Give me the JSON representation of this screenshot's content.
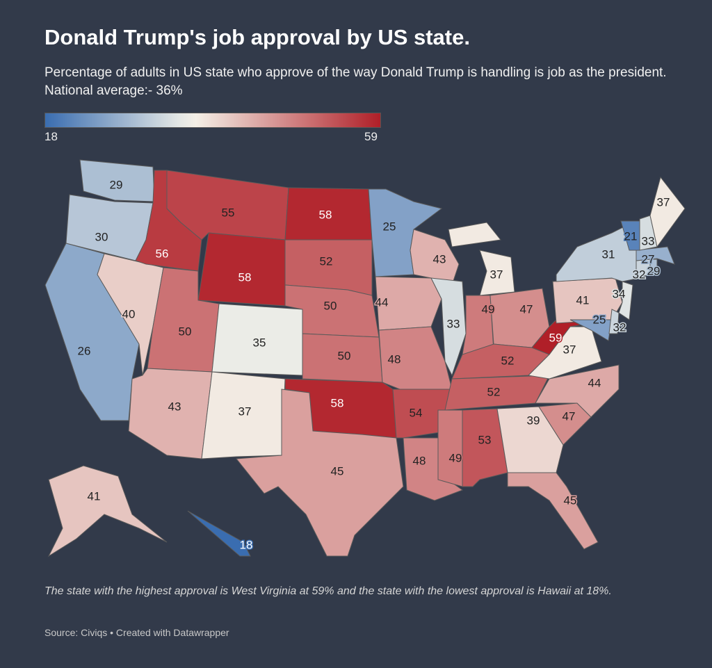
{
  "title": "Donald Trump's job approval by US state.",
  "subtitle": "Percentage of adults in US state who approve of the way Donald Trump is handling is job as the president. National average:- 36%",
  "legend": {
    "min": "18",
    "max": "59",
    "colors": {
      "low": "#3a6db0",
      "mid": "#f5f3ea",
      "high": "#b01f28"
    },
    "mid_value": 36
  },
  "map_data": {
    "type": "choropleth",
    "values": {
      "WA": 29,
      "OR": 30,
      "CA": 26,
      "NV": 40,
      "ID": 56,
      "MT": 55,
      "WY": 58,
      "UT": 50,
      "CO": 35,
      "AZ": 43,
      "NM": 37,
      "ND": 58,
      "SD": 52,
      "NE": 50,
      "KS": 50,
      "OK": 58,
      "TX": 45,
      "MN": 25,
      "IA": 44,
      "MO": 48,
      "AR": 54,
      "LA": 48,
      "WI": 43,
      "IL": 33,
      "MI": 37,
      "IN": 49,
      "OH": 47,
      "KY": 52,
      "TN": 52,
      "MS": 49,
      "AL": 53,
      "GA": 39,
      "FL": 45,
      "SC": 47,
      "NC": 44,
      "VA": 37,
      "WV": 59,
      "PA": 41,
      "NY": 31,
      "MD": 25,
      "DE": 32,
      "NJ": 34,
      "CT": 32,
      "RI": 29,
      "MA": 27,
      "VT": 21,
      "NH": 33,
      "ME": 37,
      "AK": 41,
      "HI": 18
    }
  },
  "note": "The state with the highest approval is West Virginia at 59% and the state with the lowest approval is Hawaii at 18%.",
  "source": "Source: Civiqs • Created with Datawrapper"
}
